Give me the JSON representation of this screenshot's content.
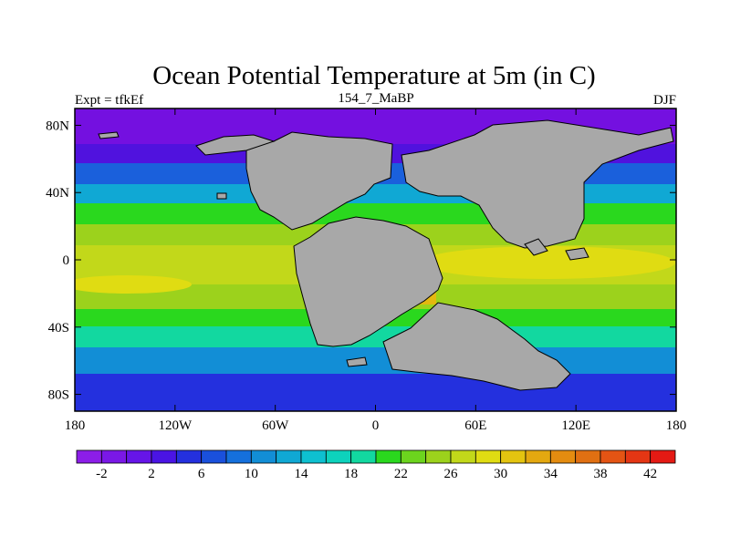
{
  "title": "Ocean Potential Temperature at 5m (in C)",
  "subtitle_left": "Expt = tfkEf",
  "subtitle_center": "154_7_MaBP",
  "subtitle_right": "DJF",
  "lat_ticks": [
    "80N",
    "40N",
    "0",
    "40S",
    "80S"
  ],
  "lon_ticks": [
    "180",
    "120W",
    "60W",
    "0",
    "60E",
    "120E",
    "180"
  ],
  "colorbar": {
    "labels": [
      "-2",
      "2",
      "6",
      "10",
      "14",
      "18",
      "22",
      "26",
      "30",
      "34",
      "38",
      "42"
    ],
    "colors": [
      "#8c1ee8",
      "#7a18e6",
      "#6615e8",
      "#4a14e4",
      "#2430de",
      "#1a50dc",
      "#1570dc",
      "#128ed6",
      "#10a8d4",
      "#0ec0d0",
      "#0dd2bc",
      "#12d8a0",
      "#2ad81e",
      "#6cd41e",
      "#9cd21c",
      "#c2d81a",
      "#e0dc12",
      "#e4c410",
      "#e4a810",
      "#e48c10",
      "#e07012",
      "#e45414",
      "#e43614",
      "#e41a14"
    ]
  },
  "field": {
    "polar_north": "#7410e0",
    "ocean_arctic": "#5012de",
    "ocean_north_high": "#1a60dc",
    "ocean_north_mid": "#10a8d4",
    "ocean_subtropic": "#2ad81e",
    "ocean_tropic": "#9cd21c",
    "ocean_equator": "#c2d81a",
    "ocean_warm": "#e0dc12",
    "warm_patch": "#e4b810",
    "ocean_south_mid": "#12d8a0",
    "ocean_south_high": "#128ed6",
    "ocean_south_polar": "#2430de",
    "land": "#a8a8a8"
  }
}
